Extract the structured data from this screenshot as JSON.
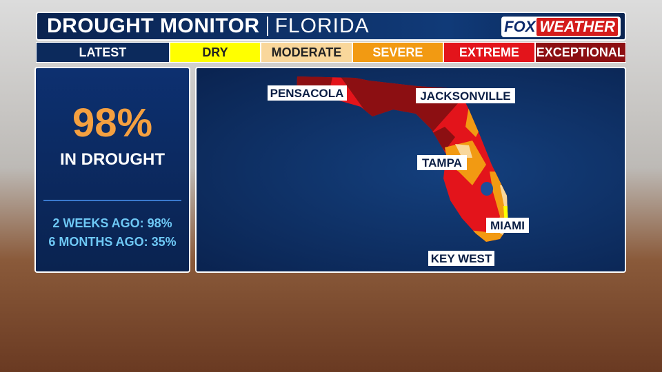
{
  "header": {
    "title": "DROUGHT MONITOR",
    "region": "FLORIDA",
    "logo": {
      "left": "FOX",
      "right": "WEATHER"
    }
  },
  "legend": [
    "LATEST",
    "DRY",
    "MODERATE",
    "SEVERE",
    "EXTREME",
    "EXCEPTIONAL"
  ],
  "stats": {
    "value": "98%",
    "label": "IN DROUGHT",
    "history": [
      "2 WEEKS AGO: 98%",
      "6 MONTHS AGO: 35%"
    ]
  },
  "map": {
    "cities": [
      "PENSACOLA",
      "JACKSONVILLE",
      "TAMPA",
      "MIAMI",
      "KEY WEST"
    ]
  }
}
